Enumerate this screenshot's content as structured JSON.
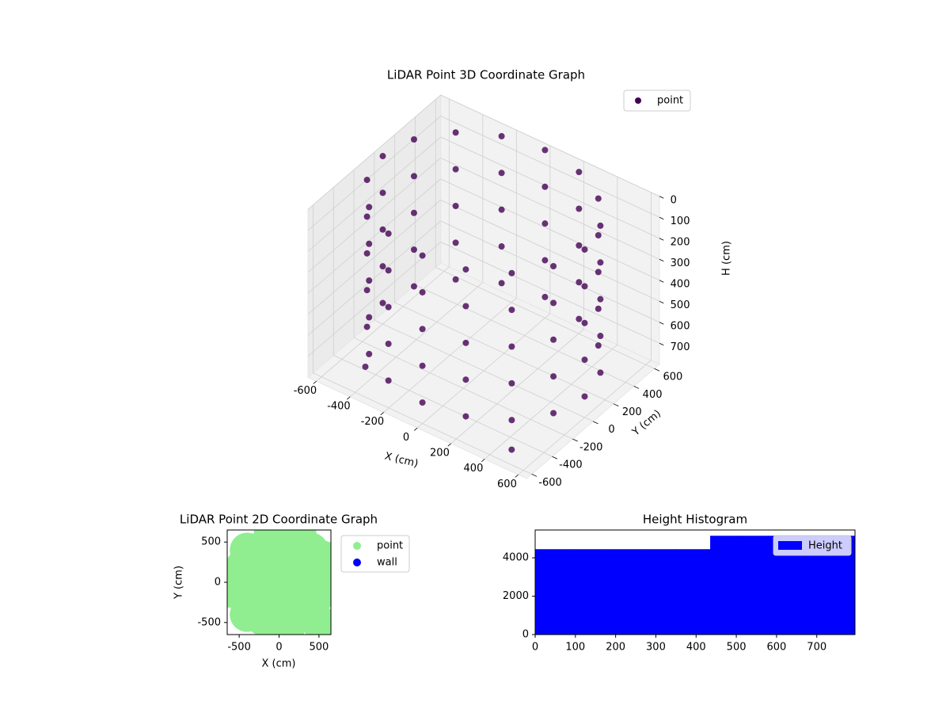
{
  "chart_data": [
    {
      "type": "scatter3d",
      "title": "LiDAR Point 3D Coordinate Graph",
      "x_label": "X (cm)",
      "y_label": "Y (cm)",
      "z_label": "H (cm)",
      "xlim": [
        -650,
        650
      ],
      "ylim": [
        -650,
        650
      ],
      "zlim": [
        0,
        800
      ],
      "z_inverted": true,
      "xticks": [
        -600,
        -400,
        -200,
        0,
        200,
        400,
        600
      ],
      "yticks": [
        -600,
        -400,
        -200,
        0,
        200,
        400,
        600
      ],
      "zticks": [
        0,
        100,
        200,
        300,
        400,
        500,
        600,
        700
      ],
      "grid": true,
      "legend": "upper right",
      "series": [
        {
          "name": "point",
          "color": "#440154",
          "x": [
            600,
            554,
            424,
            230,
            0,
            -230,
            -424,
            -554,
            -600,
            -554,
            -424,
            -230,
            0,
            230,
            424,
            554,
            600,
            554,
            424,
            230,
            0,
            -230,
            -424,
            -554,
            -600,
            -554,
            -424,
            -230,
            0,
            230,
            424,
            554,
            600,
            554,
            424,
            230,
            0,
            -230,
            -424,
            -554,
            -600,
            -554,
            -424,
            -230,
            0,
            230,
            424,
            554,
            600,
            554,
            424,
            230,
            0,
            -230,
            -424,
            -554,
            -600,
            -554,
            -424,
            -230,
            0,
            230,
            424,
            554,
            600,
            554,
            424,
            230,
            0,
            -230,
            -424,
            -554,
            -600,
            -554,
            -424,
            -230,
            0,
            230,
            424,
            554,
            -400,
            500
          ],
          "y": [
            0,
            230,
            424,
            554,
            600,
            554,
            424,
            230,
            0,
            -230,
            -424,
            -554,
            -600,
            -554,
            -424,
            -230,
            0,
            230,
            424,
            554,
            600,
            554,
            424,
            230,
            0,
            -230,
            -424,
            -554,
            -600,
            -554,
            -424,
            -230,
            0,
            230,
            424,
            554,
            600,
            554,
            424,
            230,
            0,
            -230,
            -424,
            -554,
            -600,
            -554,
            -424,
            -230,
            0,
            230,
            424,
            554,
            600,
            554,
            424,
            230,
            0,
            -230,
            -424,
            -554,
            -600,
            -554,
            -424,
            -230,
            0,
            230,
            424,
            554,
            600,
            554,
            424,
            230,
            0,
            -230,
            -424,
            -554,
            -600,
            -554,
            -424,
            -230,
            -500,
            -550
          ],
          "z": [
            0,
            0,
            0,
            0,
            0,
            0,
            0,
            0,
            0,
            0,
            0,
            0,
            0,
            0,
            0,
            0,
            175,
            175,
            175,
            175,
            175,
            175,
            175,
            175,
            175,
            175,
            175,
            175,
            175,
            175,
            175,
            175,
            350,
            350,
            350,
            350,
            350,
            350,
            350,
            350,
            350,
            350,
            350,
            350,
            350,
            350,
            350,
            350,
            525,
            525,
            525,
            525,
            525,
            525,
            525,
            525,
            525,
            525,
            525,
            525,
            525,
            525,
            525,
            525,
            700,
            700,
            700,
            700,
            700,
            700,
            700,
            700,
            700,
            700,
            700,
            700,
            700,
            700,
            700,
            700,
            720,
            760
          ]
        }
      ]
    },
    {
      "type": "scatter",
      "title": "LiDAR Point 2D Coordinate Graph",
      "x_label": "X (cm)",
      "y_label": "Y (cm)",
      "xlim": [
        -650,
        650
      ],
      "ylim": [
        -650,
        650
      ],
      "xticks": [
        -500,
        0,
        500
      ],
      "yticks": [
        -500,
        0,
        500
      ],
      "legend": "outside right",
      "series": [
        {
          "name": "point",
          "color": "#90ee90",
          "x": [
            0,
            300,
            -300,
            0,
            0,
            300,
            -300,
            -300,
            300,
            550,
            -550,
            0,
            0,
            400,
            -400,
            -400,
            150,
            -150,
            -150,
            150,
            500,
            450,
            -450,
            200,
            -200,
            100,
            -600,
            550,
            -100,
            250
          ],
          "y": [
            0,
            0,
            0,
            300,
            -300,
            300,
            300,
            -300,
            -300,
            0,
            0,
            550,
            -550,
            400,
            400,
            -400,
            150,
            150,
            -150,
            -150,
            -500,
            -200,
            200,
            450,
            -450,
            -600,
            -100,
            300,
            600,
            600
          ]
        },
        {
          "name": "wall",
          "color": "#0000ff",
          "x": [],
          "y": []
        }
      ]
    },
    {
      "type": "histogram",
      "title": "Height Histogram",
      "name": "Height",
      "color": "#0000ff",
      "bins": [
        0,
        87,
        174,
        261,
        348,
        435,
        507,
        579,
        651,
        723,
        795
      ],
      "counts": [
        4450,
        4450,
        4450,
        4450,
        4450,
        5150,
        5150,
        5150,
        5150,
        5150
      ],
      "xlim": [
        0,
        795
      ],
      "ylim": [
        0,
        5450
      ],
      "xticks": [
        0,
        100,
        200,
        300,
        400,
        500,
        600,
        700
      ],
      "yticks": [
        0,
        2000,
        4000
      ],
      "legend": "upper right"
    }
  ]
}
